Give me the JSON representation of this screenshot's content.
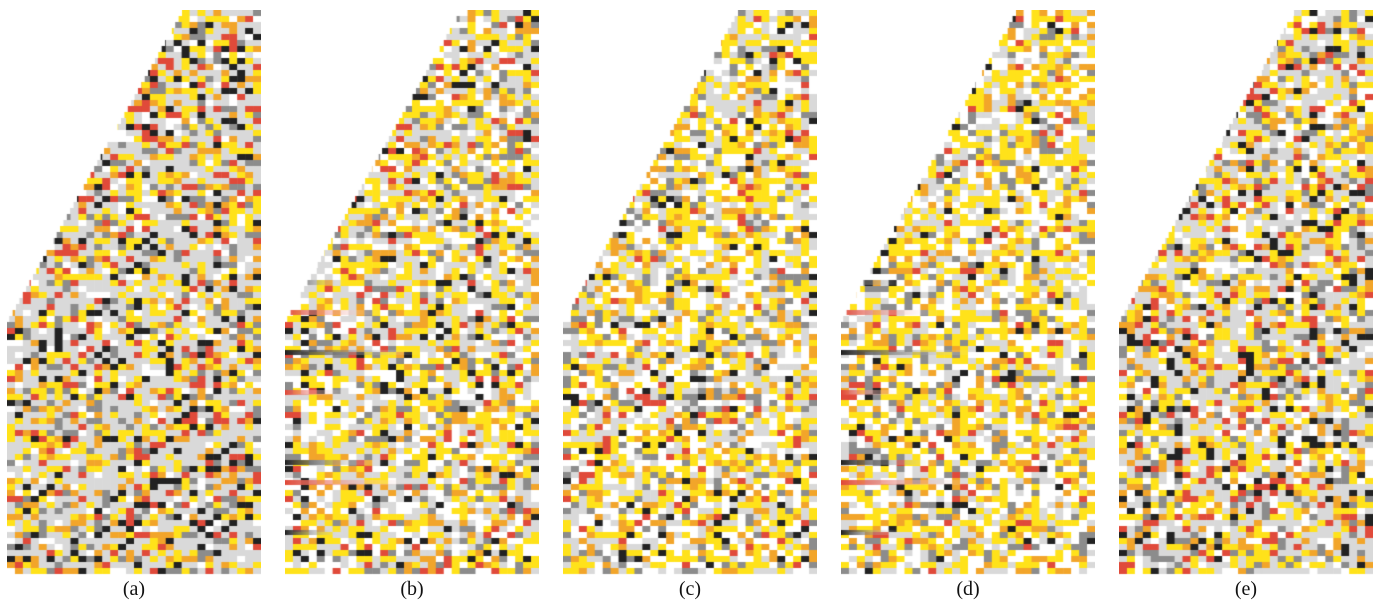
{
  "palette": {
    "white": "#ffffff",
    "light_gray": "#d9d9d9",
    "gray": "#8c8c8c",
    "dark": "#222222",
    "yellow": "#ffe21a",
    "orange": "#f2a52a",
    "red": "#e04a3a"
  },
  "panels": [
    {
      "label": "(a)",
      "intensity": 0.95,
      "streaks": false
    },
    {
      "label": "(b)",
      "intensity": 0.55,
      "streaks": true
    },
    {
      "label": "(c)",
      "intensity": 0.45,
      "streaks": false
    },
    {
      "label": "(d)",
      "intensity": 0.35,
      "streaks": true
    },
    {
      "label": "(e)",
      "intensity": 0.75,
      "streaks": false
    }
  ]
}
